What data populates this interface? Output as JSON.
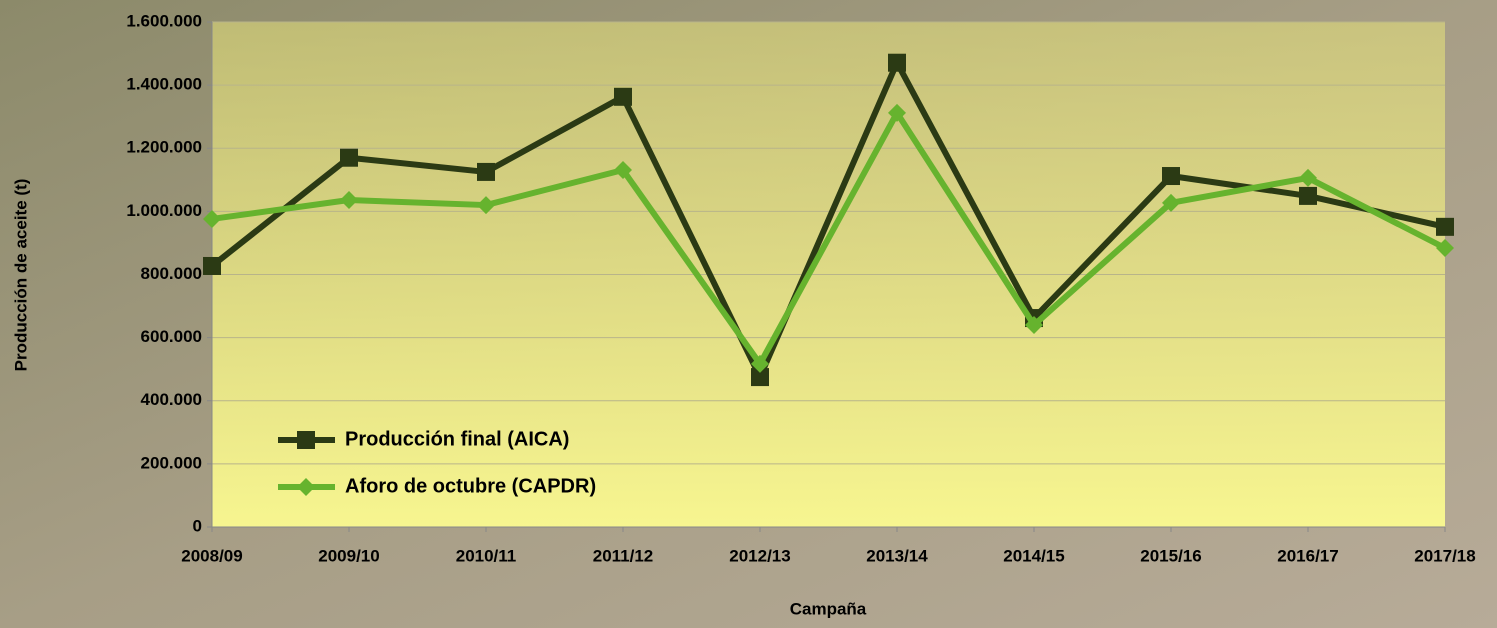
{
  "chart_data": {
    "type": "line",
    "x_label": "Campaña",
    "y_label": "Producción de aceite (t)",
    "categories": [
      "2008/09",
      "2009/10",
      "2010/11",
      "2011/12",
      "2012/13",
      "2013/14",
      "2014/15",
      "2015/16",
      "2016/17",
      "2017/18"
    ],
    "series": [
      {
        "name": "Producción final (AICA)",
        "color": "#2b3a14",
        "marker": "square",
        "values": [
          827000,
          1170000,
          1125000,
          1363000,
          475000,
          1471000,
          662000,
          1112000,
          1049000,
          951000
        ]
      },
      {
        "name": "Aforo de octubre (CAPDR)",
        "color": "#66b32e",
        "marker": "diamond",
        "values": [
          976000,
          1036000,
          1020000,
          1131000,
          517000,
          1312000,
          640000,
          1027000,
          1106000,
          884000
        ]
      }
    ],
    "ylim": [
      0,
      1600000
    ],
    "yticks": [
      0,
      {
        "value": 200000,
        "label": "200.000"
      },
      {
        "value": 400000,
        "label": "400.000"
      },
      {
        "value": 600000,
        "label": "600.000"
      },
      {
        "value": 800000,
        "label": "800.000"
      },
      {
        "value": 1000000,
        "label": "1.000.000"
      },
      {
        "value": 1200000,
        "label": "1.200.000"
      },
      {
        "value": 1400000,
        "label": "1.400.000"
      },
      {
        "value": 1600000,
        "label": "1.600.000"
      }
    ],
    "grid": true,
    "legend": "lower left"
  }
}
